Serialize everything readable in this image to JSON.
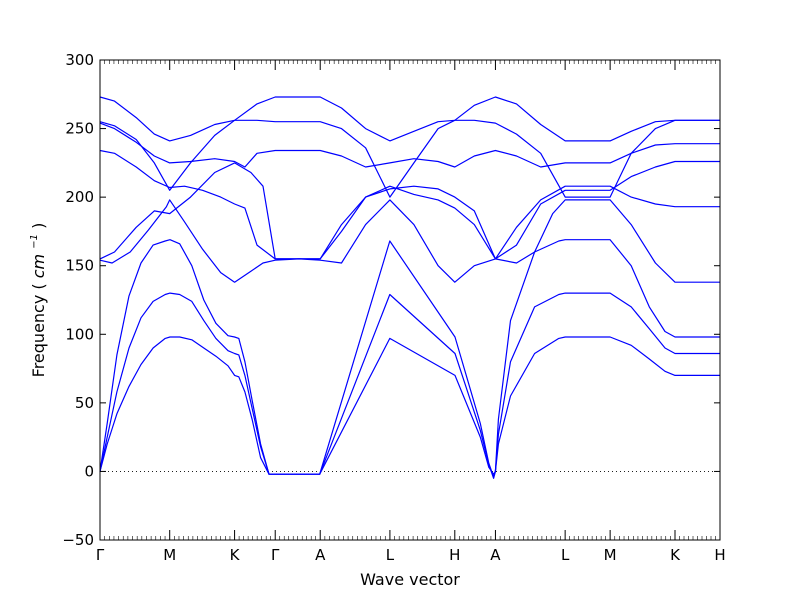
{
  "chart_data": {
    "type": "line",
    "xlabel": "Wave vector",
    "ylabel": "Frequency",
    "ylabel_unit_base": "cm",
    "ylabel_unit_exp": "−1",
    "ylim": [
      -50,
      300
    ],
    "yticks": [
      -50,
      0,
      50,
      100,
      150,
      200,
      250,
      300
    ],
    "grid": false,
    "legend": "none",
    "reference_line": {
      "y": 0,
      "style": "dotted"
    },
    "colors": {
      "bands": "#0000ff",
      "axes": "#000000"
    },
    "x_symmetry_points": [
      {
        "label": "Γ",
        "x": 0.0
      },
      {
        "label": "M",
        "x": 0.57735
      },
      {
        "label": "K",
        "x": 1.11474
      },
      {
        "label": "Γ",
        "x": 1.45133
      },
      {
        "label": "A",
        "x": 1.82397
      },
      {
        "label": "L",
        "x": 2.40132
      },
      {
        "label": "H",
        "x": 2.93871
      },
      {
        "label": "A",
        "x": 3.2753
      },
      {
        "label": "L",
        "x": 3.85265
      },
      {
        "label": "M",
        "x": 4.22529
      },
      {
        "label": "K",
        "x": 4.76268
      },
      {
        "label": "H",
        "x": 5.13532
      }
    ],
    "series": [
      {
        "x": [
          0.0,
          0.06,
          0.14,
          0.24,
          0.34,
          0.44,
          0.54,
          0.58,
          0.66,
          0.76,
          0.86,
          0.96,
          1.06,
          1.115,
          1.15,
          1.2,
          1.26,
          1.33,
          1.4,
          1.451,
          1.82,
          2.4,
          2.94,
          3.15,
          3.22,
          3.26,
          3.275,
          3.3,
          3.4,
          3.6,
          3.8,
          3.853,
          4.225,
          4.4,
          4.55,
          4.68,
          4.763,
          5.135
        ],
        "y": [
          0,
          20,
          42,
          62,
          78,
          90,
          97,
          98,
          98,
          96,
          90,
          84,
          77,
          70,
          69,
          58,
          38,
          10,
          -2,
          -2,
          -2,
          97,
          70,
          25,
          3,
          -2,
          0,
          20,
          55,
          86,
          97,
          98,
          98,
          92,
          82,
          73,
          70,
          70
        ]
      },
      {
        "x": [
          0.0,
          0.06,
          0.14,
          0.24,
          0.34,
          0.44,
          0.54,
          0.58,
          0.66,
          0.76,
          0.86,
          0.96,
          1.06,
          1.115,
          1.15,
          1.2,
          1.26,
          1.33,
          1.4,
          1.451,
          1.82,
          2.4,
          2.94,
          3.15,
          3.22,
          3.26,
          3.275,
          3.3,
          3.4,
          3.6,
          3.8,
          3.853,
          4.225,
          4.4,
          4.55,
          4.68,
          4.763,
          5.135
        ],
        "y": [
          0,
          25,
          58,
          90,
          112,
          124,
          129,
          130,
          129,
          124,
          110,
          97,
          88,
          86,
          85,
          70,
          46,
          18,
          -2,
          -2,
          -2,
          129,
          86,
          30,
          5,
          -5,
          0,
          27,
          80,
          120,
          129,
          130,
          130,
          120,
          104,
          90,
          86,
          86
        ]
      },
      {
        "x": [
          0.0,
          0.06,
          0.14,
          0.24,
          0.34,
          0.44,
          0.54,
          0.58,
          0.66,
          0.76,
          0.86,
          0.96,
          1.06,
          1.115,
          1.15,
          1.2,
          1.26,
          1.33,
          1.4,
          1.451,
          1.82,
          2.4,
          2.94,
          3.15,
          3.22,
          3.26,
          3.275,
          3.3,
          3.4,
          3.6,
          3.8,
          3.853,
          4.225,
          4.4,
          4.55,
          4.68,
          4.763,
          5.135
        ],
        "y": [
          0,
          35,
          85,
          128,
          152,
          165,
          168,
          169,
          166,
          150,
          125,
          108,
          99,
          98,
          97,
          80,
          52,
          20,
          -2,
          -2,
          -2,
          168,
          98,
          35,
          6,
          -4,
          0,
          38,
          110,
          160,
          168,
          169,
          169,
          150,
          120,
          102,
          98,
          98
        ]
      },
      {
        "x": [
          0.0,
          0.1,
          0.25,
          0.4,
          0.55,
          0.577,
          0.7,
          0.85,
          1.0,
          1.115,
          1.25,
          1.35,
          1.451,
          1.65,
          1.824,
          2.0,
          2.2,
          2.401,
          2.6,
          2.8,
          2.939,
          3.1,
          3.275,
          3.45,
          3.6,
          3.75,
          3.853,
          4.225,
          4.4,
          4.6,
          4.763,
          5.135
        ],
        "y": [
          154,
          152,
          160,
          176,
          193,
          198,
          182,
          162,
          145,
          138,
          146,
          152,
          154,
          155,
          154,
          152,
          180,
          198,
          180,
          150,
          138,
          150,
          155,
          152,
          160,
          188,
          198,
          198,
          180,
          152,
          138,
          138
        ]
      },
      {
        "x": [
          0.0,
          0.12,
          0.3,
          0.45,
          0.577,
          0.75,
          0.95,
          1.115,
          1.25,
          1.35,
          1.451,
          1.824,
          2.0,
          2.2,
          2.401,
          2.6,
          2.8,
          2.939,
          3.1,
          3.275,
          3.45,
          3.65,
          3.853,
          4.225,
          4.4,
          4.6,
          4.763,
          5.135
        ],
        "y": [
          155,
          160,
          178,
          190,
          188,
          200,
          218,
          225,
          218,
          208,
          155,
          155,
          175,
          200,
          208,
          202,
          198,
          192,
          180,
          155,
          178,
          198,
          208,
          208,
          200,
          195,
          193,
          193
        ]
      },
      {
        "x": [
          0.0,
          0.12,
          0.3,
          0.45,
          0.577,
          0.7,
          0.85,
          1.0,
          1.115,
          1.2,
          1.3,
          1.45,
          1.7,
          1.824,
          2.0,
          2.2,
          2.401,
          2.6,
          2.8,
          2.939,
          3.1,
          3.275,
          3.45,
          3.65,
          3.853,
          4.225,
          4.4,
          4.6,
          4.763,
          5.135
        ],
        "y": [
          234,
          232,
          222,
          212,
          207,
          208,
          205,
          200,
          195,
          192,
          165,
          155,
          155,
          155,
          180,
          200,
          206,
          208,
          206,
          200,
          190,
          155,
          165,
          195,
          205,
          205,
          215,
          222,
          226,
          226
        ]
      },
      {
        "x": [
          0.0,
          0.12,
          0.3,
          0.45,
          0.577,
          0.75,
          0.95,
          1.115,
          1.2,
          1.3,
          1.451,
          1.824,
          2.0,
          2.2,
          2.401,
          2.6,
          2.8,
          2.939,
          3.1,
          3.275,
          3.45,
          3.65,
          3.853,
          4.225,
          4.4,
          4.6,
          4.763,
          5.135
        ],
        "y": [
          254,
          250,
          240,
          230,
          225,
          226,
          228,
          226,
          222,
          232,
          234,
          234,
          230,
          222,
          225,
          228,
          226,
          222,
          230,
          234,
          230,
          222,
          225,
          225,
          232,
          238,
          239,
          239
        ]
      },
      {
        "x": [
          0.0,
          0.12,
          0.3,
          0.45,
          0.577,
          0.75,
          0.95,
          1.115,
          1.3,
          1.451,
          1.824,
          2.0,
          2.2,
          2.401,
          2.6,
          2.8,
          2.939,
          3.1,
          3.275,
          3.45,
          3.65,
          3.853,
          4.225,
          4.4,
          4.6,
          4.763,
          5.135
        ],
        "y": [
          255,
          252,
          242,
          225,
          205,
          225,
          245,
          256,
          256,
          255,
          255,
          250,
          236,
          200,
          225,
          250,
          256,
          256,
          254,
          246,
          232,
          200,
          200,
          232,
          250,
          256,
          256
        ]
      },
      {
        "x": [
          0.0,
          0.12,
          0.3,
          0.45,
          0.577,
          0.75,
          0.95,
          1.115,
          1.3,
          1.451,
          1.824,
          2.0,
          2.2,
          2.401,
          2.6,
          2.8,
          2.939,
          3.1,
          3.275,
          3.45,
          3.65,
          3.853,
          4.225,
          4.4,
          4.6,
          4.763,
          5.135
        ],
        "y": [
          273,
          270,
          258,
          246,
          241,
          245,
          253,
          256,
          268,
          273,
          273,
          265,
          250,
          241,
          248,
          255,
          256,
          267,
          273,
          268,
          253,
          241,
          241,
          248,
          255,
          256,
          256
        ]
      }
    ]
  }
}
